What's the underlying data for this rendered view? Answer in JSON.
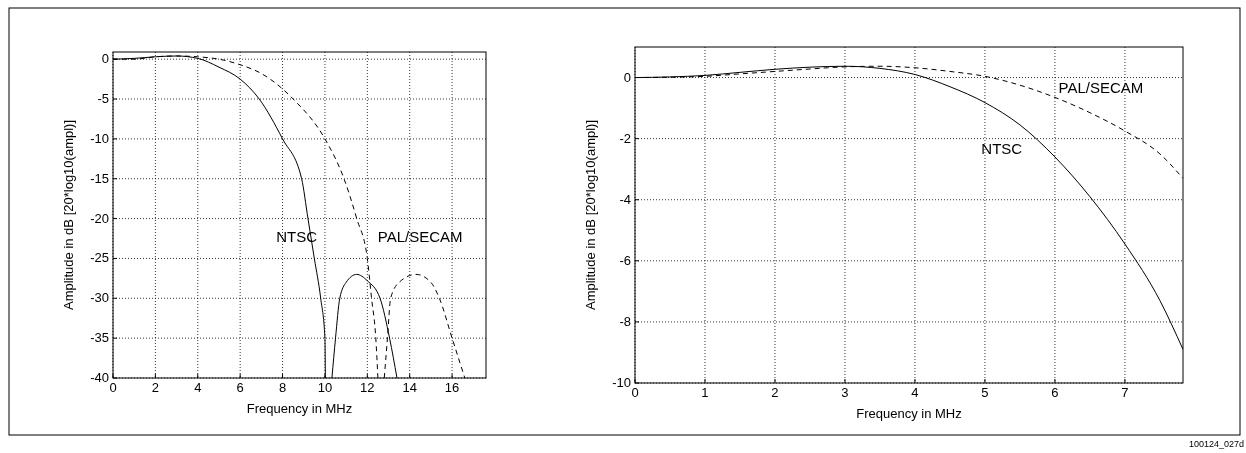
{
  "chart_data": [
    {
      "type": "line",
      "xlabel": "Frequency in MHz",
      "ylabel": "Amplitude in dB [20*log10(ampl)]",
      "xlim": [
        0,
        17.6
      ],
      "ylim": [
        -40,
        0.9
      ],
      "xticks": [
        0,
        2,
        4,
        6,
        8,
        10,
        12,
        14,
        16
      ],
      "yticks": [
        0,
        -5,
        -10,
        -15,
        -20,
        -25,
        -30,
        -35,
        -40
      ],
      "grid": true,
      "series": [
        {
          "color": "#000000",
          "line_style": "solid",
          "x": [
            0,
            1,
            2,
            3,
            4,
            5,
            6,
            6.9,
            8,
            8.9,
            9.2,
            9.5,
            9.8,
            10,
            10.02,
            null,
            10.33,
            10.5,
            10.7,
            11,
            11.5,
            12,
            12.6,
            13.05,
            13.4
          ],
          "values": [
            0,
            0.1,
            0.3,
            0.4,
            0.1,
            -1,
            -2.5,
            -5,
            -10,
            -15,
            -20,
            -25,
            -30,
            -35,
            -40,
            null,
            -40,
            -35,
            -30,
            -28,
            -27,
            -27.8,
            -30,
            -35,
            -40
          ]
        },
        {
          "color": "#000000",
          "line_style": "dashed",
          "x": [
            0,
            1,
            2,
            3,
            4,
            5,
            6,
            7,
            8.5,
            10,
            10.9,
            11.5,
            12,
            12.2,
            12.4,
            12.5,
            null,
            12.8,
            12.95,
            13.1,
            13.5,
            14.3,
            15,
            15.4,
            16,
            16.6
          ],
          "values": [
            0,
            0,
            0.3,
            0.4,
            0.3,
            0,
            -0.7,
            -1.8,
            -5,
            -10,
            -15,
            -20,
            -25,
            -30,
            -35,
            -40,
            null,
            -40,
            -35,
            -30,
            -28,
            -27,
            -28,
            -30,
            -35,
            -40
          ]
        }
      ],
      "annotations": [
        "NTSC",
        "PAL/SECAM"
      ]
    },
    {
      "type": "line",
      "xlabel": "Frequency in MHz",
      "ylabel": "Amplitude in dB [20*log10(ampl)]",
      "xlim": [
        0,
        7.83
      ],
      "ylim": [
        -10,
        1
      ],
      "xticks": [
        0,
        1,
        2,
        3,
        4,
        5,
        6,
        7
      ],
      "yticks": [
        0,
        -2,
        -4,
        -6,
        -8,
        -10
      ],
      "grid": true,
      "series": [
        {
          "color": "#000000",
          "line_style": "solid",
          "x": [
            0,
            0.5,
            1,
            1.5,
            2,
            2.5,
            3,
            3.5,
            4,
            4.5,
            5,
            5.5,
            6,
            6.5,
            7,
            7.5,
            7.83
          ],
          "values": [
            0,
            0.02,
            0.07,
            0.17,
            0.27,
            0.34,
            0.37,
            0.3,
            0.1,
            -0.3,
            -0.82,
            -1.55,
            -2.6,
            -3.9,
            -5.45,
            -7.3,
            -8.9
          ]
        },
        {
          "color": "#000000",
          "line_style": "dashed",
          "x": [
            0,
            0.5,
            1,
            1.5,
            2,
            2.5,
            3,
            3.5,
            4,
            4.5,
            5,
            5.5,
            6,
            6.5,
            7,
            7.5,
            7.83
          ],
          "values": [
            0,
            0.01,
            0.04,
            0.12,
            0.2,
            0.28,
            0.35,
            0.37,
            0.32,
            0.2,
            0.04,
            -0.25,
            -0.65,
            -1.15,
            -1.75,
            -2.5,
            -3.3
          ]
        }
      ],
      "annotations": [
        "PAL/SECAM",
        "NTSC",
        "100124_027d"
      ]
    }
  ]
}
